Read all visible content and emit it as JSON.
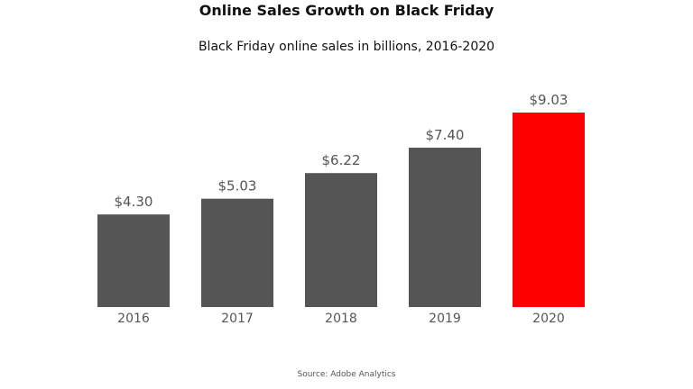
{
  "title": "Online Sales Growth on Black Friday",
  "subtitle": "Black Friday online sales in billions, 2016-2020",
  "source": "Source: Adobe Analytics",
  "colors": {
    "bar_default": "#555555",
    "bar_highlight": "#ff0000",
    "label_text": "#555555",
    "baseline": "#cccccc"
  },
  "chart_data": {
    "type": "bar",
    "categories": [
      "2016",
      "2017",
      "2018",
      "2019",
      "2020"
    ],
    "values": [
      4.3,
      5.03,
      6.22,
      7.4,
      9.03
    ],
    "data_labels": [
      "$4.30",
      "$5.03",
      "$6.22",
      "$7.40",
      "$9.03"
    ],
    "highlight_index": 4,
    "title": "Online Sales Growth on Black Friday",
    "subtitle": "Black Friday online sales in billions, 2016-2020",
    "xlabel": "",
    "ylabel": "",
    "ylim": [
      0,
      9.03
    ],
    "grid": false,
    "legend": "none",
    "source": "Source: Adobe Analytics"
  }
}
